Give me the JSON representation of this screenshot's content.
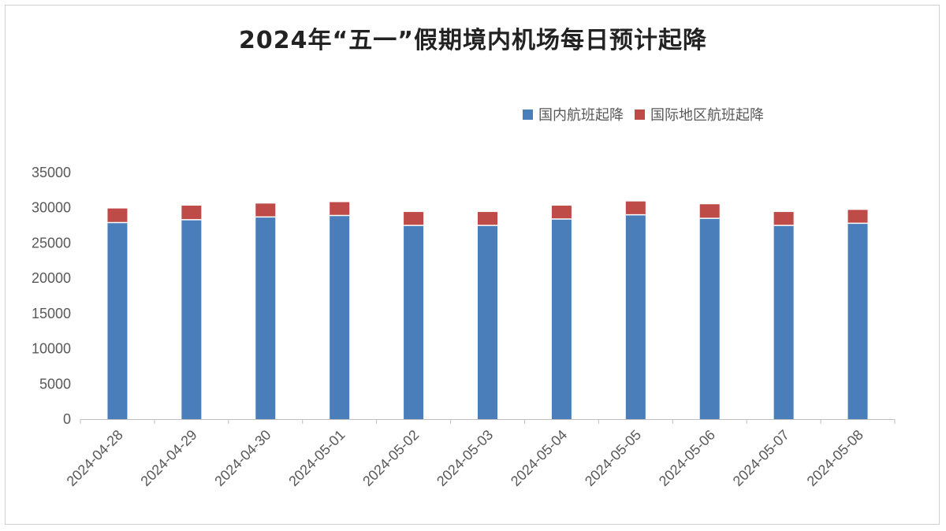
{
  "chart_data": {
    "type": "bar",
    "stacked": true,
    "title": "2024年“五一”假期境内机场每日预计起降",
    "categories": [
      "2024-04-28",
      "2024-04-29",
      "2024-04-30",
      "2024-05-01",
      "2024-05-02",
      "2024-05-03",
      "2024-05-04",
      "2024-05-05",
      "2024-05-06",
      "2024-05-07",
      "2024-05-08"
    ],
    "series": [
      {
        "name": "国内航班起降",
        "color": "#4a7ebb",
        "values": [
          27900,
          28300,
          28700,
          28900,
          27500,
          27500,
          28400,
          29000,
          28500,
          27500,
          27800
        ]
      },
      {
        "name": "国际地区航班起降",
        "color": "#be4b48",
        "values": [
          2000,
          2000,
          1900,
          1900,
          1900,
          1900,
          1900,
          1900,
          2000,
          1900,
          1900
        ]
      }
    ],
    "ylim": [
      0,
      35000
    ],
    "yticks": [
      0,
      5000,
      10000,
      15000,
      20000,
      25000,
      30000,
      35000
    ],
    "grid": false,
    "legend": "top-right",
    "xlabel": "",
    "ylabel": ""
  }
}
